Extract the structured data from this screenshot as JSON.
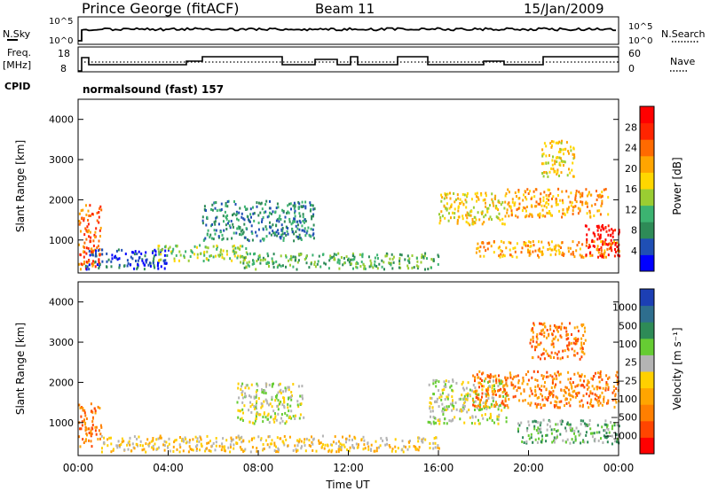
{
  "header": {
    "station": "Prince George (fitACF)",
    "beam": "Beam 11",
    "date": "15/Jan/2009"
  },
  "panels": {
    "nsky_label": "N.Sky",
    "nsky_ticks": [
      "10^5",
      "10^0"
    ],
    "nsearch_label": "N.Search",
    "nsearch_ticks": [
      "10^5",
      "10^0"
    ],
    "freq_label": "Freq.",
    "freq_unit": "[MHz]",
    "freq_ticks": [
      "18",
      "8"
    ],
    "nave_label": "Nave",
    "nave_ticks": [
      "60",
      "0"
    ],
    "cpid_label": "CPID",
    "cpid_value": "normalsound (fast) 157"
  },
  "colors": {
    "power_scale": [
      "#0000ff",
      "#1f4fb4",
      "#2e8b57",
      "#3cb371",
      "#9acd32",
      "#ffd700",
      "#ffa500",
      "#ff6a00",
      "#ff2400",
      "#ff0000"
    ],
    "velocity_scale": [
      "#1c3fb4",
      "#2e6e8e",
      "#2e8b57",
      "#66cc33",
      "#b4b4b4",
      "#ffd000",
      "#ffa500",
      "#ff7f00",
      "#ff4500",
      "#ff0000"
    ]
  },
  "chart_data": [
    {
      "type": "heatmap",
      "name": "power",
      "ylabel": "Slant Range [km]",
      "yticks": [
        "1000",
        "2000",
        "3000",
        "4000"
      ],
      "colorbar_label": "Power [dB]",
      "colorbar_ticks": [
        "4",
        "8",
        "12",
        "16",
        "20",
        "24",
        "28"
      ],
      "xlim_hours": [
        0,
        24
      ],
      "ylim_km": [
        180,
        4500
      ],
      "echo_bands": [
        {
          "t0": 0.0,
          "t1": 1.0,
          "r0": 300,
          "r1": 1900,
          "level": 7
        },
        {
          "t0": 0.3,
          "t1": 4.0,
          "r0": 300,
          "r1": 800,
          "level": 1
        },
        {
          "t0": 3.5,
          "t1": 7.5,
          "r0": 500,
          "r1": 900,
          "level": 4
        },
        {
          "t0": 5.5,
          "t1": 10.5,
          "r0": 1000,
          "r1": 2000,
          "level": 2
        },
        {
          "t0": 7.0,
          "t1": 16.0,
          "r0": 300,
          "r1": 700,
          "level": 3
        },
        {
          "t0": 16.0,
          "t1": 19.0,
          "r0": 1400,
          "r1": 2200,
          "level": 5
        },
        {
          "t0": 17.5,
          "t1": 24.0,
          "r0": 600,
          "r1": 1000,
          "level": 6
        },
        {
          "t0": 19.0,
          "t1": 23.5,
          "r0": 1600,
          "r1": 2300,
          "level": 6
        },
        {
          "t0": 20.5,
          "t1": 22.0,
          "r0": 2600,
          "r1": 3500,
          "level": 5
        },
        {
          "t0": 22.5,
          "t1": 24.0,
          "r0": 600,
          "r1": 1400,
          "level": 9
        }
      ]
    },
    {
      "type": "heatmap",
      "name": "velocity",
      "ylabel": "Slant Range [km]",
      "yticks": [
        "1000",
        "2000",
        "3000",
        "4000"
      ],
      "colorbar_label": "Velocity [m s⁻¹]",
      "colorbar_ticks": [
        "1000",
        "500",
        "100",
        "25",
        "−25",
        "−100",
        "−500",
        "−1000"
      ],
      "xticks": [
        "00:00",
        "04:00",
        "08:00",
        "12:00",
        "16:00",
        "20:00",
        "00:00"
      ],
      "xlabel": "Time UT",
      "xlim_hours": [
        0,
        24
      ],
      "ylim_km": [
        180,
        4500
      ],
      "echo_bands": [
        {
          "t0": 0.0,
          "t1": 1.0,
          "r0": 400,
          "r1": 1500,
          "level": 7
        },
        {
          "t0": 1.0,
          "t1": 16.0,
          "r0": 300,
          "r1": 700,
          "level": 5
        },
        {
          "t0": 7.0,
          "t1": 10.0,
          "r0": 1000,
          "r1": 2000,
          "level": 4
        },
        {
          "t0": 15.5,
          "t1": 19.0,
          "r0": 1000,
          "r1": 2100,
          "level": 4
        },
        {
          "t0": 17.5,
          "t1": 24.0,
          "r0": 1400,
          "r1": 2300,
          "level": 7
        },
        {
          "t0": 19.5,
          "t1": 24.0,
          "r0": 500,
          "r1": 1100,
          "level": 3
        },
        {
          "t0": 20.0,
          "t1": 22.5,
          "r0": 2600,
          "r1": 3500,
          "level": 7
        }
      ]
    }
  ]
}
